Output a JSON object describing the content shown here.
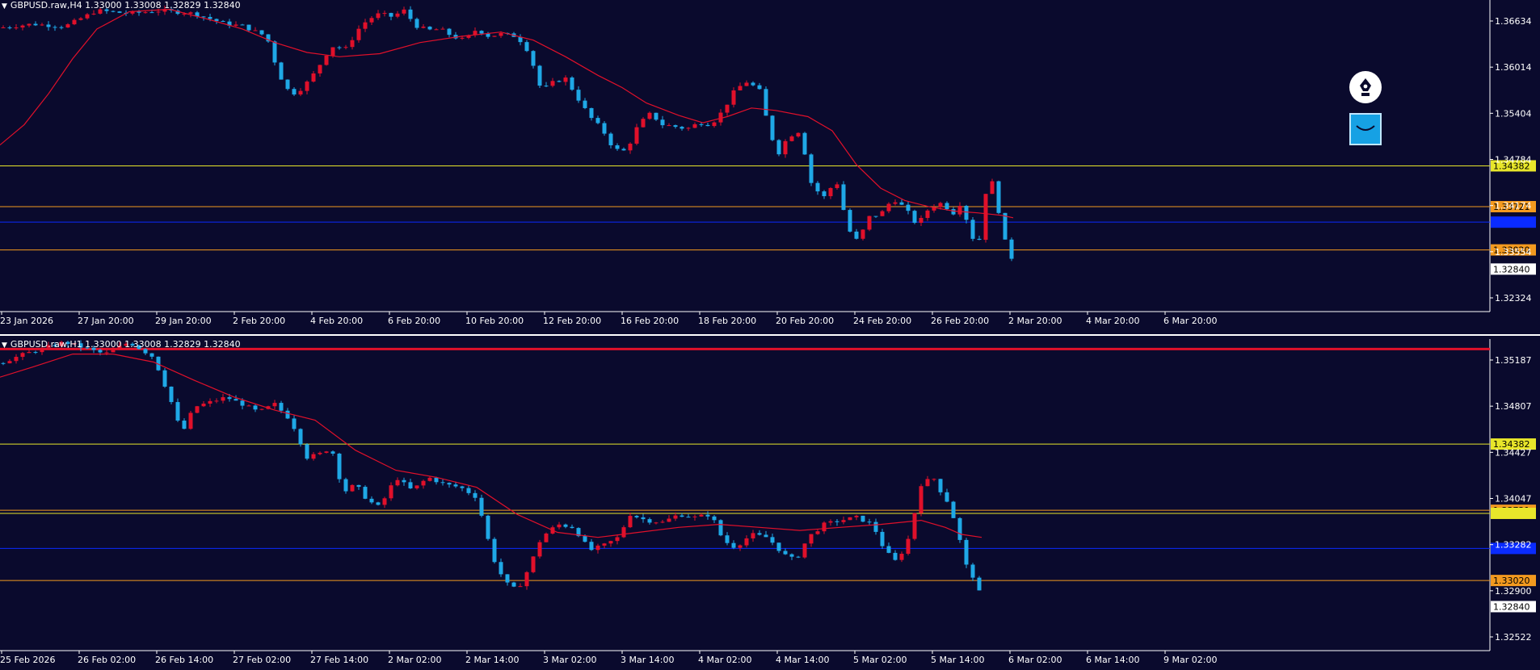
{
  "colors": {
    "background": "#0a0a2d",
    "bull": "#e0102a",
    "bear": "#1fa8e6",
    "moving_average": "#e0102a",
    "yellow_level": "#e8e62a",
    "orange_level": "#f39a1f",
    "blue_level": "#0a2bff",
    "frame": "#ffffff"
  },
  "toolbar": {
    "pen_icon": "fountain-pen-icon",
    "smile_icon": "smile-icon"
  },
  "chart_data": [
    {
      "type": "candlestick",
      "title_marker": "▼",
      "title": "GBPUSD.raw,H4  1.33000 1.33008 1.32829 1.32840",
      "ylim": [
        1.3202,
        1.3707
      ],
      "y_ticks": [
        "1.36634",
        "1.36014",
        "1.35404",
        "1.34784",
        "1.34174",
        "1.33554",
        "1.32324"
      ],
      "x_ticks": [
        "23 Jan 2026",
        "27 Jan 20:00",
        "29 Jan 20:00",
        "2 Feb 20:00",
        "4 Feb 20:00",
        "6 Feb 20:00",
        "10 Feb 20:00",
        "12 Feb 20:00",
        "16 Feb 20:00",
        "18 Feb 20:00",
        "20 Feb 20:00",
        "24 Feb 20:00",
        "26 Feb 20:00",
        "2 Mar 20:00",
        "4 Mar 20:00",
        "6 Mar 20:00"
      ],
      "levels": [
        {
          "value": 1.34382,
          "label": "1.34382",
          "kind": "yellow"
        },
        {
          "value": 1.33721,
          "label": "1.33721",
          "kind": "orange"
        },
        {
          "value": 1.3347,
          "label": "",
          "kind": "blue"
        },
        {
          "value": 1.3302,
          "label": "1.33020",
          "kind": "orange"
        }
      ],
      "current_price": {
        "value": 1.3284,
        "label": "1.32840"
      },
      "close_path": [
        [
          0,
          1.3662
        ],
        [
          40,
          1.3668
        ],
        [
          80,
          1.3664
        ],
        [
          120,
          1.369
        ],
        [
          160,
          1.3685
        ],
        [
          200,
          1.369
        ],
        [
          240,
          1.3685
        ],
        [
          280,
          1.3668
        ],
        [
          300,
          1.3665
        ],
        [
          330,
          1.3648
        ],
        [
          345,
          1.3587
        ],
        [
          360,
          1.3553
        ],
        [
          375,
          1.3565
        ],
        [
          390,
          1.359
        ],
        [
          410,
          1.3632
        ],
        [
          430,
          1.3628
        ],
        [
          440,
          1.3655
        ],
        [
          455,
          1.3675
        ],
        [
          470,
          1.3685
        ],
        [
          485,
          1.368
        ],
        [
          500,
          1.369
        ],
        [
          515,
          1.3665
        ],
        [
          530,
          1.3658
        ],
        [
          545,
          1.366
        ],
        [
          560,
          1.3648
        ],
        [
          575,
          1.3642
        ],
        [
          590,
          1.366
        ],
        [
          605,
          1.3648
        ],
        [
          620,
          1.3652
        ],
        [
          640,
          1.3648
        ],
        [
          655,
          1.3622
        ],
        [
          670,
          1.356
        ],
        [
          685,
          1.3574
        ],
        [
          700,
          1.358
        ],
        [
          715,
          1.3548
        ],
        [
          730,
          1.3518
        ],
        [
          745,
          1.3498
        ],
        [
          760,
          1.3465
        ],
        [
          775,
          1.3462
        ],
        [
          790,
          1.3505
        ],
        [
          805,
          1.3523
        ],
        [
          820,
          1.3505
        ],
        [
          835,
          1.3502
        ],
        [
          850,
          1.3498
        ],
        [
          865,
          1.3508
        ],
        [
          880,
          1.3505
        ],
        [
          895,
          1.3528
        ],
        [
          910,
          1.3562
        ],
        [
          925,
          1.3575
        ],
        [
          940,
          1.356
        ],
        [
          950,
          1.3508
        ],
        [
          962,
          1.3455
        ],
        [
          975,
          1.3485
        ],
        [
          990,
          1.3495
        ],
        [
          1005,
          1.3405
        ],
        [
          1020,
          1.3388
        ],
        [
          1035,
          1.3415
        ],
        [
          1050,
          1.3335
        ],
        [
          1062,
          1.3315
        ],
        [
          1075,
          1.3355
        ],
        [
          1090,
          1.336
        ],
        [
          1105,
          1.3385
        ],
        [
          1120,
          1.337
        ],
        [
          1135,
          1.3342
        ],
        [
          1150,
          1.337
        ],
        [
          1165,
          1.3378
        ],
        [
          1180,
          1.3362
        ],
        [
          1190,
          1.338
        ],
        [
          1198,
          1.3343
        ],
        [
          1210,
          1.33
        ],
        [
          1220,
          1.3395
        ],
        [
          1230,
          1.3415
        ],
        [
          1238,
          1.3348
        ],
        [
          1246,
          1.3305
        ],
        [
          1254,
          1.3284
        ]
      ],
      "ma_path": [
        [
          0,
          1.3472
        ],
        [
          30,
          1.3505
        ],
        [
          60,
          1.3555
        ],
        [
          90,
          1.3612
        ],
        [
          120,
          1.366
        ],
        [
          160,
          1.3688
        ],
        [
          210,
          1.3692
        ],
        [
          260,
          1.3675
        ],
        [
          300,
          1.366
        ],
        [
          340,
          1.3638
        ],
        [
          380,
          1.3622
        ],
        [
          420,
          1.3615
        ],
        [
          470,
          1.362
        ],
        [
          520,
          1.3638
        ],
        [
          570,
          1.3648
        ],
        [
          620,
          1.3655
        ],
        [
          660,
          1.3642
        ],
        [
          700,
          1.3615
        ],
        [
          740,
          1.3585
        ],
        [
          770,
          1.3565
        ],
        [
          800,
          1.354
        ],
        [
          840,
          1.352
        ],
        [
          870,
          1.3508
        ],
        [
          900,
          1.3518
        ],
        [
          930,
          1.3532
        ],
        [
          960,
          1.3528
        ],
        [
          1000,
          1.3518
        ],
        [
          1030,
          1.3495
        ],
        [
          1060,
          1.344
        ],
        [
          1090,
          1.3402
        ],
        [
          1120,
          1.3382
        ],
        [
          1150,
          1.3372
        ],
        [
          1180,
          1.3365
        ],
        [
          1210,
          1.3362
        ],
        [
          1240,
          1.3358
        ],
        [
          1254,
          1.3354
        ]
      ]
    },
    {
      "type": "candlestick",
      "title_marker": "▼",
      "title": "GBPUSD.raw,H1  1.33000 1.33008 1.32829 1.32840",
      "ylim": [
        1.3232,
        1.3543
      ],
      "y_ticks": [
        "1.35187",
        "1.34807",
        "1.34427",
        "1.34047",
        "1.33282",
        "1.32900",
        "1.32522"
      ],
      "x_ticks": [
        "25 Feb 2026",
        "26 Feb 02:00",
        "26 Feb 14:00",
        "27 Feb 02:00",
        "27 Feb 14:00",
        "2 Mar 02:00",
        "2 Mar 14:00",
        "3 Mar 02:00",
        "3 Mar 14:00",
        "4 Mar 02:00",
        "4 Mar 14:00",
        "5 Mar 02:00",
        "5 Mar 14:00",
        "6 Mar 02:00",
        "6 Mar 14:00",
        "9 Mar 02:00"
      ],
      "levels": [
        {
          "value": 1.3533,
          "label": "",
          "kind": "red"
        },
        {
          "value": 1.34382,
          "label": "1.34382",
          "kind": "yellow"
        },
        {
          "value": 1.33721,
          "label": "1.33721",
          "kind": "orange"
        },
        {
          "value": 1.3369,
          "label": "",
          "kind": "yellow"
        },
        {
          "value": 1.3334,
          "label": "",
          "kind": "blue"
        },
        {
          "value": 1.3302,
          "label": "1.33020",
          "kind": "orange"
        }
      ],
      "current_price": {
        "value": 1.3284,
        "label": "1.32840"
      },
      "close_path": [
        [
          0,
          1.3519
        ],
        [
          30,
          1.3528
        ],
        [
          80,
          1.354
        ],
        [
          130,
          1.3528
        ],
        [
          160,
          1.354
        ],
        [
          190,
          1.3525
        ],
        [
          210,
          1.3485
        ],
        [
          225,
          1.3448
        ],
        [
          240,
          1.3475
        ],
        [
          260,
          1.348
        ],
        [
          280,
          1.3485
        ],
        [
          300,
          1.3478
        ],
        [
          320,
          1.347
        ],
        [
          340,
          1.3478
        ],
        [
          360,
          1.3462
        ],
        [
          380,
          1.3425
        ],
        [
          395,
          1.3428
        ],
        [
          410,
          1.3435
        ],
        [
          425,
          1.339
        ],
        [
          440,
          1.3398
        ],
        [
          455,
          1.3382
        ],
        [
          470,
          1.3375
        ],
        [
          490,
          1.3405
        ],
        [
          510,
          1.3392
        ],
        [
          530,
          1.3405
        ],
        [
          550,
          1.3398
        ],
        [
          570,
          1.3395
        ],
        [
          590,
          1.3385
        ],
        [
          600,
          1.3355
        ],
        [
          610,
          1.3325
        ],
        [
          625,
          1.33
        ],
        [
          640,
          1.3292
        ],
        [
          655,
          1.3315
        ],
        [
          670,
          1.3345
        ],
        [
          690,
          1.3358
        ],
        [
          710,
          1.3355
        ],
        [
          730,
          1.3332
        ],
        [
          750,
          1.3338
        ],
        [
          765,
          1.3345
        ],
        [
          780,
          1.3368
        ],
        [
          800,
          1.3362
        ],
        [
          820,
          1.336
        ],
        [
          840,
          1.3368
        ],
        [
          860,
          1.3365
        ],
        [
          880,
          1.3368
        ],
        [
          895,
          1.3342
        ],
        [
          910,
          1.3335
        ],
        [
          930,
          1.3348
        ],
        [
          950,
          1.3345
        ],
        [
          970,
          1.3328
        ],
        [
          985,
          1.3322
        ],
        [
          1000,
          1.3345
        ],
        [
          1020,
          1.3358
        ],
        [
          1040,
          1.3362
        ],
        [
          1060,
          1.3365
        ],
        [
          1080,
          1.3358
        ],
        [
          1095,
          1.3332
        ],
        [
          1110,
          1.332
        ],
        [
          1125,
          1.3345
        ],
        [
          1140,
          1.3398
        ],
        [
          1155,
          1.3405
        ],
        [
          1165,
          1.339
        ],
        [
          1175,
          1.3378
        ],
        [
          1185,
          1.3352
        ],
        [
          1195,
          1.3318
        ],
        [
          1205,
          1.3305
        ],
        [
          1215,
          1.3284
        ]
      ],
      "ma_path": [
        [
          0,
          1.3505
        ],
        [
          40,
          1.3515
        ],
        [
          90,
          1.3528
        ],
        [
          140,
          1.3528
        ],
        [
          190,
          1.352
        ],
        [
          240,
          1.3502
        ],
        [
          290,
          1.3485
        ],
        [
          340,
          1.3472
        ],
        [
          390,
          1.3462
        ],
        [
          440,
          1.3432
        ],
        [
          490,
          1.3412
        ],
        [
          540,
          1.3405
        ],
        [
          590,
          1.3395
        ],
        [
          640,
          1.3368
        ],
        [
          690,
          1.335
        ],
        [
          740,
          1.3345
        ],
        [
          790,
          1.335
        ],
        [
          840,
          1.3355
        ],
        [
          890,
          1.3358
        ],
        [
          940,
          1.3355
        ],
        [
          990,
          1.3352
        ],
        [
          1040,
          1.3355
        ],
        [
          1090,
          1.3358
        ],
        [
          1140,
          1.3362
        ],
        [
          1170,
          1.3355
        ],
        [
          1190,
          1.3348
        ],
        [
          1215,
          1.3345
        ]
      ]
    }
  ]
}
